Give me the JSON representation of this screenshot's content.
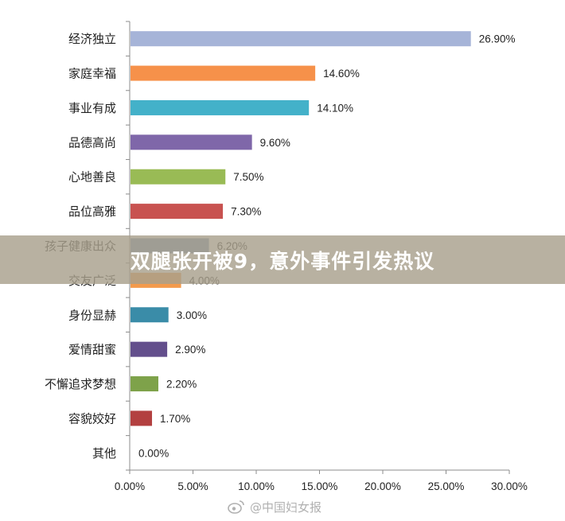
{
  "chart_data": {
    "type": "bar",
    "orientation": "horizontal",
    "categories": [
      "经济独立",
      "家庭幸福",
      "事业有成",
      "品德高尚",
      "心地善良",
      "品位高雅",
      "孩子健康出众",
      "交友广泛",
      "身份显赫",
      "爱情甜蜜",
      "不懈追求梦想",
      "容貌姣好",
      "其他"
    ],
    "values": [
      26.9,
      14.6,
      14.1,
      9.6,
      7.5,
      7.3,
      6.2,
      4.0,
      3.0,
      2.9,
      2.2,
      1.7,
      0.0
    ],
    "value_labels": [
      "26.90%",
      "14.60%",
      "14.10%",
      "9.60%",
      "7.50%",
      "7.30%",
      "6.20%",
      "4.00%",
      "3.00%",
      "2.90%",
      "2.20%",
      "1.70%",
      "0.00%"
    ],
    "colors": [
      "#a6b4d8",
      "#f6914a",
      "#43b1c9",
      "#7f67a9",
      "#99bb55",
      "#c85250",
      "#7490b8",
      "#f39a4c",
      "#3a8ca8",
      "#634f8c",
      "#7ea24a",
      "#b34040",
      "#4a7ebb"
    ],
    "xlim": [
      0,
      30
    ],
    "x_ticks": [
      "0.00%",
      "5.00%",
      "10.00%",
      "15.00%",
      "20.00%",
      "25.00%",
      "30.00%"
    ],
    "grid": false,
    "title": "",
    "xlabel": "",
    "ylabel": ""
  },
  "banner": {
    "text": "双腿张开被9，意外事件引发热议"
  },
  "watermark": {
    "text": "@中国妇女报"
  }
}
